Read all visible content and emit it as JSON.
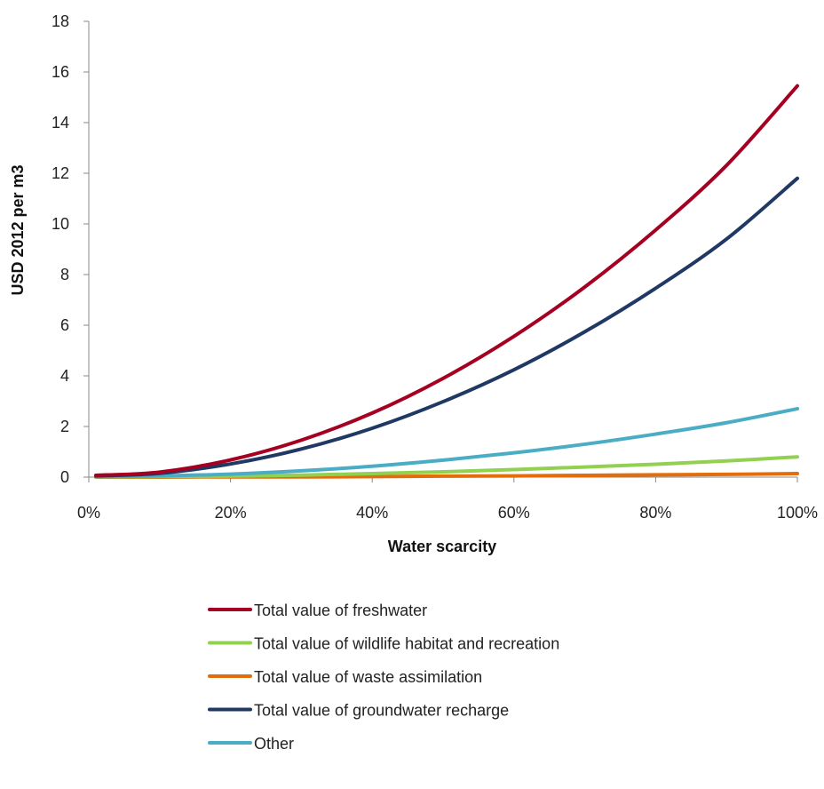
{
  "chart_data": {
    "type": "line",
    "xlabel": "Water scarcity",
    "ylabel": "USD 2012  per m3",
    "xlim": [
      0,
      1
    ],
    "ylim": [
      0,
      18
    ],
    "x_ticks": [
      0,
      0.2,
      0.4,
      0.6,
      0.8,
      1.0
    ],
    "x_tick_labels": [
      "0%",
      "20%",
      "40%",
      "60%",
      "80%",
      "100%"
    ],
    "y_ticks": [
      0,
      2,
      4,
      6,
      8,
      10,
      12,
      14,
      16,
      18
    ],
    "y_tick_labels": [
      "0",
      "2",
      "4",
      "6",
      "8",
      "10",
      "12",
      "14",
      "16",
      "18"
    ],
    "grid": false,
    "legend_position": "bottom",
    "x": [
      0.01,
      0.1,
      0.2,
      0.3,
      0.4,
      0.5,
      0.6,
      0.7,
      0.8,
      0.9,
      1.0
    ],
    "series": [
      {
        "name": "Total value of freshwater",
        "color": "#A50021",
        "values": [
          0.07,
          0.2,
          0.68,
          1.46,
          2.53,
          3.9,
          5.56,
          7.51,
          9.76,
          12.31,
          15.45
        ]
      },
      {
        "name": "Total value of wildlife habitat and recreation",
        "color": "#92D050",
        "values": [
          0.01,
          0.02,
          0.04,
          0.08,
          0.14,
          0.21,
          0.3,
          0.4,
          0.51,
          0.64,
          0.8
        ]
      },
      {
        "name": "Total value of  waste assimilation",
        "color": "#E46C0A",
        "values": [
          0.0,
          0.0,
          0.01,
          0.01,
          0.02,
          0.04,
          0.05,
          0.07,
          0.09,
          0.11,
          0.14
        ]
      },
      {
        "name": "Total value of groundwater recharge",
        "color": "#1F3864",
        "values": [
          0.05,
          0.15,
          0.52,
          1.11,
          1.93,
          2.98,
          4.24,
          5.74,
          7.46,
          9.4,
          11.8
        ]
      },
      {
        "name": "Other",
        "color": "#4BACC6",
        "values": [
          0.02,
          0.05,
          0.12,
          0.25,
          0.43,
          0.67,
          0.96,
          1.3,
          1.7,
          2.15,
          2.7
        ]
      }
    ]
  }
}
